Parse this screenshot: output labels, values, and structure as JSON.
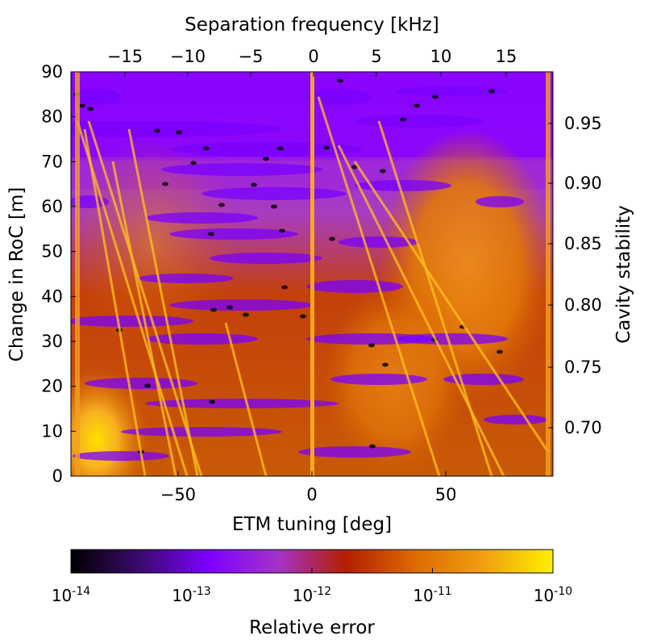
{
  "chart_data": {
    "type": "heatmap",
    "x_axis": {
      "label": "ETM tuning [deg]",
      "range": [
        -90,
        90
      ],
      "ticks": [
        -50,
        0,
        50
      ],
      "tick_labels": [
        "−50",
        "0",
        "50"
      ]
    },
    "y_axis": {
      "label": "Change in RoC [m]",
      "range": [
        0,
        90
      ],
      "ticks": [
        0,
        10,
        20,
        30,
        40,
        50,
        60,
        70,
        80,
        90
      ],
      "tick_labels": [
        "0",
        "10",
        "20",
        "30",
        "40",
        "50",
        "60",
        "70",
        "80",
        "90"
      ]
    },
    "top_axis": {
      "label": "Separation frequency [kHz]",
      "ticks": [
        -15,
        -10,
        -5,
        0,
        5,
        10,
        15
      ],
      "tick_labels": [
        "−15",
        "−10",
        "−5",
        "0",
        "5",
        "10",
        "15"
      ]
    },
    "right_axis": {
      "label": "Cavity stability",
      "ticks": [
        0.7,
        0.75,
        0.8,
        0.85,
        0.9,
        0.95
      ],
      "tick_labels": [
        "0.70",
        "0.75",
        "0.80",
        "0.85",
        "0.90",
        "0.95"
      ]
    },
    "colorbar": {
      "label": "Relative error",
      "scale": "log",
      "range": [
        1e-14,
        1e-10
      ],
      "tick_labels": [
        {
          "base": "10",
          "exp": "-14"
        },
        {
          "base": "10",
          "exp": "-13"
        },
        {
          "base": "10",
          "exp": "-12"
        },
        {
          "base": "10",
          "exp": "-11"
        },
        {
          "base": "10",
          "exp": "-10"
        }
      ],
      "colormap": [
        "#000000",
        "#3a0a6e",
        "#7e00ff",
        "#a433c9",
        "#b41e00",
        "#dd6a00",
        "#f0a010",
        "#fff000"
      ]
    },
    "grid": false
  }
}
